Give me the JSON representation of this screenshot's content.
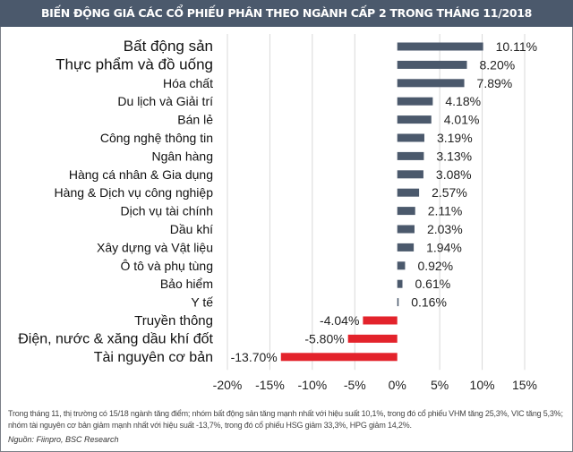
{
  "title": "BIẾN ĐỘNG GIÁ CÁC CỔ PHIẾU PHÂN THEO NGÀNH CẤP 2 TRONG THÁNG 11/2018",
  "chart_data": {
    "type": "bar",
    "orientation": "horizontal",
    "title": "BIẾN ĐỘNG GIÁ CÁC CỔ PHIẾU PHÂN THEO NGÀNH CẤP 2 TRONG THÁNG 11/2018",
    "categories": [
      "Bất động sản",
      "Thực phẩm và đồ uống",
      "Hóa chất",
      "Du lịch và Giải trí",
      "Bán lẻ",
      "Công nghệ thông tin",
      "Ngân hàng",
      "Hàng cá nhân & Gia dụng",
      "Hàng & Dịch vụ công nghiệp",
      "Dịch vụ tài chính",
      "Dầu khí",
      "Xây dựng và Vật liệu",
      "Ô tô và phụ tùng",
      "Bảo hiểm",
      "Y tế",
      "Truyền thông",
      "Điện, nước & xăng dầu khí đốt",
      "Tài nguyên cơ bản"
    ],
    "values": [
      10.11,
      8.2,
      7.89,
      4.18,
      4.01,
      3.19,
      3.13,
      3.08,
      2.57,
      2.11,
      2.03,
      1.94,
      0.92,
      0.61,
      0.16,
      -4.04,
      -5.8,
      -13.7
    ],
    "data_labels": [
      "10.11%",
      "8.20%",
      "7.89%",
      "4.18%",
      "4.01%",
      "3.19%",
      "3.13%",
      "3.08%",
      "2.57%",
      "2.11%",
      "2.03%",
      "1.94%",
      "0.92%",
      "0.61%",
      "0.16%",
      "-4.04%",
      "-5.80%",
      "-13.70%"
    ],
    "xlim": [
      -20,
      15
    ],
    "xticks": [
      -20,
      -15,
      -10,
      -5,
      0,
      5,
      10,
      15
    ],
    "xtick_labels": [
      "-20%",
      "-15%",
      "-10%",
      "-5%",
      "0%",
      "5%",
      "10%",
      "15%"
    ],
    "grid": "vertical",
    "colors": {
      "positive": "#4b596c",
      "negative": "#e3232b",
      "grid": "#d9d9d9"
    }
  },
  "note": "Trong tháng 11, thị trường có 15/18 ngành tăng điểm; nhóm bất động sản tăng mạnh nhất với hiệu suất 10,1%, trong đó cổ phiếu VHM tăng 25,3%, VIC tăng 5,3%; nhóm tài nguyên cơ bản giảm mạnh nhất với hiệu suất -13,7%, trong đó cổ phiếu HSG giảm 33,3%, HPG giảm 14,2%.",
  "source": "Nguồn: Fiinpro, BSC Research"
}
